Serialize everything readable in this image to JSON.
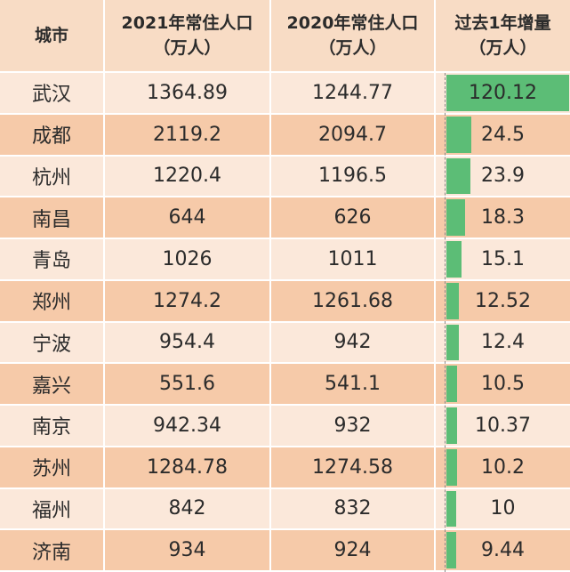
{
  "table": {
    "header": [
      [
        "城市"
      ],
      [
        "2021年常住人口",
        "（万人）"
      ],
      [
        "2020年常住人口",
        "（万人）"
      ],
      [
        "过去1年增量",
        "（万人）"
      ]
    ],
    "rows": [
      [
        "武汉",
        "1364.89",
        "1244.77",
        120.12
      ],
      [
        "成都",
        "2119.2",
        "2094.7",
        24.5
      ],
      [
        "杭州",
        "1220.4",
        "1196.5",
        23.9
      ],
      [
        "南昌",
        "644",
        "626",
        18.3
      ],
      [
        "青岛",
        "1026",
        "1011",
        15.1
      ],
      [
        "郑州",
        "1274.2",
        "1261.68",
        12.52
      ],
      [
        "宁波",
        "954.4",
        "942",
        12.4
      ],
      [
        "嘉兴",
        "551.6",
        "541.1",
        10.5
      ],
      [
        "南京",
        "942.34",
        "932",
        10.37
      ],
      [
        "苏州",
        "1284.78",
        "1274.58",
        10.2
      ],
      [
        "福州",
        "842",
        "832",
        10
      ],
      [
        "济南",
        "934",
        "924",
        9.44
      ]
    ]
  }
}
